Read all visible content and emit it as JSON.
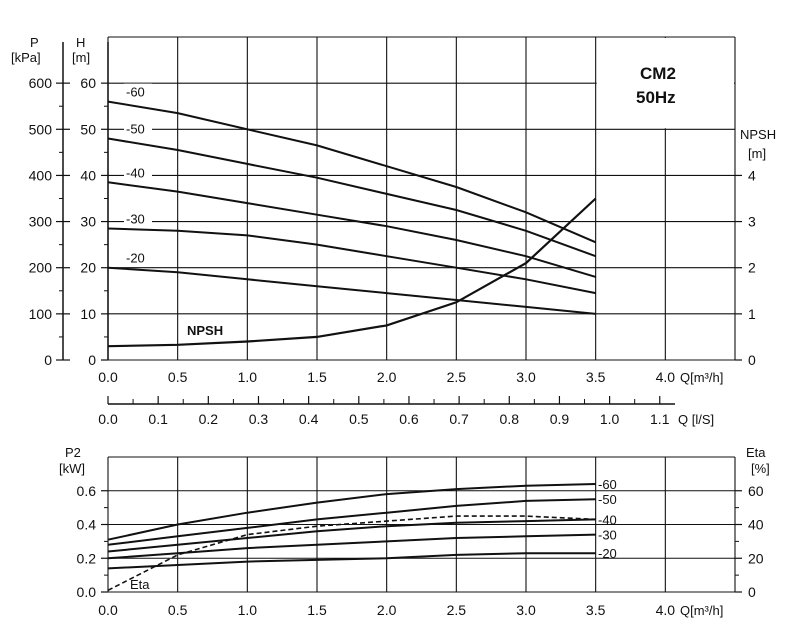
{
  "chart_data": [
    {
      "type": "line",
      "title": "CM2",
      "subtitle": "50Hz",
      "x_axis": {
        "label": "Q[m³/h]",
        "range": [
          0,
          4.5
        ],
        "ticks": [
          "0.0",
          "0.5",
          "1.0",
          "1.5",
          "2.0",
          "2.5",
          "3.0",
          "3.5",
          "4.0"
        ]
      },
      "secondary_x_axis": {
        "label": "Q [l/S]",
        "ticks": [
          "0.0",
          "0.1",
          "0.2",
          "0.3",
          "0.4",
          "0.5",
          "0.6",
          "0.7",
          "0.8",
          "0.9",
          "1.0",
          "1.1"
        ]
      },
      "y_axis_left_pressure": {
        "label_line1": "P",
        "label_line2": "[kPa]",
        "ticks": [
          "0",
          "100",
          "200",
          "300",
          "400",
          "500",
          "600"
        ]
      },
      "y_axis_left_head": {
        "label_line1": "H",
        "label_line2": "[m]",
        "range": [
          0,
          70
        ],
        "ticks": [
          "0",
          "10",
          "20",
          "30",
          "40",
          "50",
          "60"
        ]
      },
      "y_axis_right_npsh": {
        "label_line1": "NPSH",
        "label_line2": "[m]",
        "range": [
          0,
          7
        ],
        "ticks": [
          "0",
          "1",
          "2",
          "3",
          "4"
        ]
      },
      "grid": true,
      "series": [
        {
          "name": "-60",
          "x": [
            0,
            0.5,
            1.0,
            1.5,
            2.0,
            2.5,
            3.0,
            3.5
          ],
          "y": [
            56,
            53.5,
            50,
            46.5,
            42,
            37.5,
            32,
            25.5
          ]
        },
        {
          "name": "-50",
          "x": [
            0,
            0.5,
            1.0,
            1.5,
            2.0,
            2.5,
            3.0,
            3.5
          ],
          "y": [
            48,
            45.5,
            42.5,
            39.5,
            36,
            32.5,
            28,
            22.5
          ]
        },
        {
          "name": "-40",
          "x": [
            0,
            0.5,
            1.0,
            1.5,
            2.0,
            2.5,
            3.0,
            3.5
          ],
          "y": [
            38.5,
            36.5,
            34,
            31.5,
            29,
            26,
            22.5,
            18
          ]
        },
        {
          "name": "-30",
          "x": [
            0,
            0.5,
            1.0,
            1.5,
            2.0,
            2.5,
            3.0,
            3.5
          ],
          "y": [
            28.5,
            28,
            27,
            25,
            22.5,
            20,
            17.5,
            14.5
          ]
        },
        {
          "name": "-20",
          "x": [
            0,
            0.5,
            1.0,
            1.5,
            2.0,
            2.5,
            3.0,
            3.5
          ],
          "y": [
            20,
            19,
            17.5,
            16,
            14.5,
            13,
            11.5,
            10
          ]
        },
        {
          "name": "NPSH",
          "axis": "npsh",
          "x": [
            0,
            0.5,
            1.0,
            1.5,
            2.0,
            2.5,
            3.0,
            3.5
          ],
          "y": [
            0.3,
            0.33,
            0.4,
            0.5,
            0.75,
            1.25,
            2.1,
            3.5
          ]
        }
      ]
    },
    {
      "type": "line",
      "x_axis": {
        "label": "Q[m³/h]",
        "range": [
          0,
          4.5
        ],
        "ticks": [
          "0.0",
          "0.5",
          "1.0",
          "1.5",
          "2.0",
          "2.5",
          "3.0",
          "3.5",
          "4.0"
        ]
      },
      "y_axis_left": {
        "label_line1": "P2",
        "label_line2": "[kW]",
        "range": [
          0,
          0.8
        ],
        "ticks": [
          "0.0",
          "0.2",
          "0.4",
          "0.6"
        ]
      },
      "y_axis_right": {
        "label_line1": "Eta",
        "label_line2": "[%]",
        "range": [
          0,
          80
        ],
        "ticks": [
          "0",
          "20",
          "40",
          "60"
        ]
      },
      "grid": true,
      "series": [
        {
          "name": "-60",
          "x": [
            0,
            0.5,
            1.0,
            1.5,
            2.0,
            2.5,
            3.0,
            3.5
          ],
          "y": [
            0.31,
            0.4,
            0.47,
            0.53,
            0.58,
            0.61,
            0.63,
            0.64
          ]
        },
        {
          "name": "-50",
          "x": [
            0,
            0.5,
            1.0,
            1.5,
            2.0,
            2.5,
            3.0,
            3.5
          ],
          "y": [
            0.28,
            0.33,
            0.38,
            0.43,
            0.47,
            0.51,
            0.54,
            0.55
          ]
        },
        {
          "name": "-40",
          "x": [
            0,
            0.5,
            1.0,
            1.5,
            2.0,
            2.5,
            3.0,
            3.5
          ],
          "y": [
            0.24,
            0.28,
            0.32,
            0.36,
            0.39,
            0.41,
            0.42,
            0.43
          ]
        },
        {
          "name": "-30",
          "x": [
            0,
            0.5,
            1.0,
            1.5,
            2.0,
            2.5,
            3.0,
            3.5
          ],
          "y": [
            0.2,
            0.23,
            0.26,
            0.28,
            0.3,
            0.32,
            0.33,
            0.34
          ]
        },
        {
          "name": "-20",
          "x": [
            0,
            0.5,
            1.0,
            1.5,
            2.0,
            2.5,
            3.0,
            3.5
          ],
          "y": [
            0.14,
            0.16,
            0.18,
            0.19,
            0.2,
            0.22,
            0.23,
            0.23
          ]
        },
        {
          "name": "Eta",
          "axis": "eta",
          "style": "dashed",
          "x": [
            0,
            0.5,
            1.0,
            1.5,
            2.0,
            2.5,
            3.0,
            3.5
          ],
          "y": [
            1,
            22,
            34,
            39,
            42,
            45,
            45,
            43
          ]
        }
      ]
    }
  ]
}
